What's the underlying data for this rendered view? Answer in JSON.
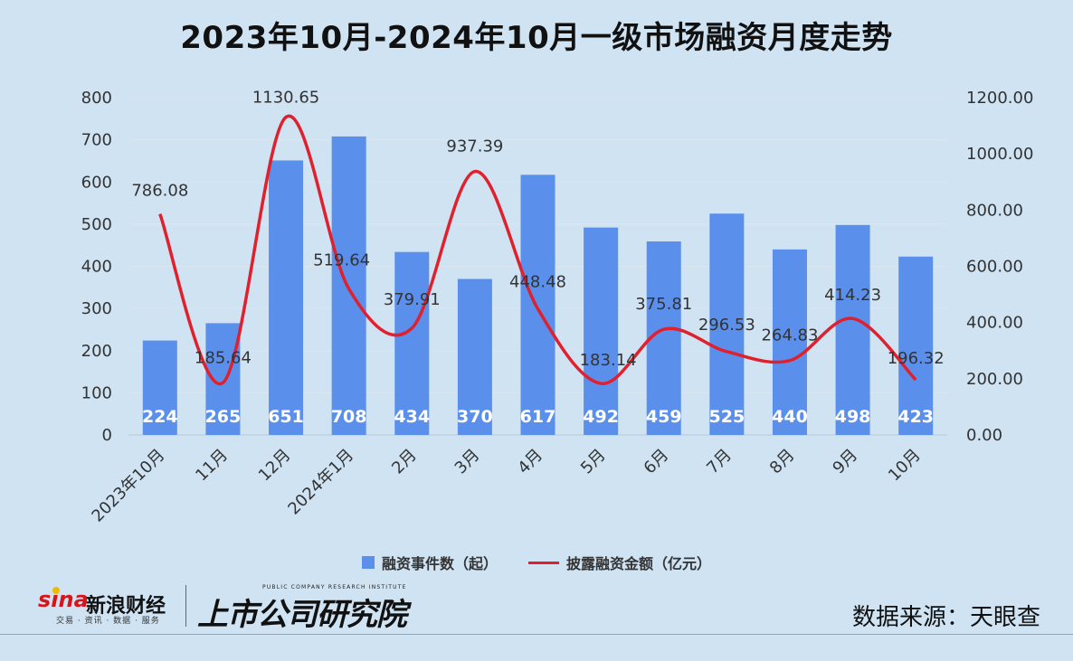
{
  "title": "2023年10月-2024年10月一级市场融资月度走势",
  "chart_data": {
    "type": "bar+line",
    "categories": [
      "2023年10月",
      "11月",
      "12月",
      "2024年1月",
      "2月",
      "3月",
      "4月",
      "5月",
      "6月",
      "7月",
      "8月",
      "9月",
      "10月"
    ],
    "series": [
      {
        "name": "融资事件数（起）",
        "type": "bar",
        "axis": "left",
        "values": [
          224,
          265,
          651,
          708,
          434,
          370,
          617,
          492,
          459,
          525,
          440,
          498,
          423
        ],
        "color": "#5b8fec"
      },
      {
        "name": "披露融资金额（亿元）",
        "type": "line",
        "axis": "right",
        "values": [
          786.08,
          185.64,
          1130.65,
          519.64,
          379.91,
          937.39,
          448.48,
          183.14,
          375.81,
          296.53,
          264.83,
          414.23,
          196.32
        ],
        "color": "#e0202c"
      }
    ],
    "y_left": {
      "min": 0,
      "max": 800,
      "ticks": [
        "0",
        "100",
        "200",
        "300",
        "400",
        "500",
        "600",
        "700",
        "800"
      ]
    },
    "y_right": {
      "min": 0,
      "max": 1200,
      "ticks": [
        "0.00",
        "200.00",
        "400.00",
        "600.00",
        "800.00",
        "1000.00",
        "1200.00"
      ]
    },
    "grid": true,
    "legend_position": "bottom"
  },
  "footer": {
    "brand_logo": "sina",
    "brand_name": "新浪财经",
    "brand_sub": "交易 · 资讯 · 数据 · 服务",
    "institute_en": "PUBLIC COMPANY RESEARCH INSTITUTE",
    "institute_name": "上市公司研究院",
    "source": "数据来源：天眼查"
  }
}
